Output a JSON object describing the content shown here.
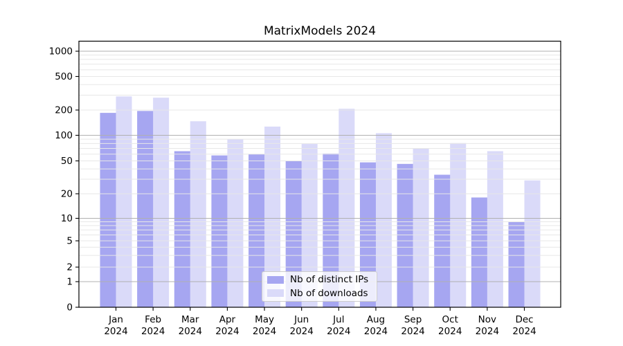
{
  "title": "MatrixModels 2024",
  "legend": {
    "items": [
      {
        "label": "Nb of distinct IPs",
        "color": "#a6a6f1"
      },
      {
        "label": "Nb of downloads",
        "color": "#dadaf9"
      }
    ]
  },
  "colors": {
    "bar_base": "rgb(107,107,232)",
    "grid_major": "#b0b0b0",
    "grid_minor": "#e7e7e7",
    "axis": "#000000",
    "text": "#000000",
    "legend_border": "#cccccc"
  },
  "chart_data": {
    "type": "bar",
    "title": "MatrixModels 2024",
    "categories": [
      "Jan 2024",
      "Feb 2024",
      "Mar 2024",
      "Apr 2024",
      "May 2024",
      "Jun 2024",
      "Jul 2024",
      "Aug 2024",
      "Sep 2024",
      "Oct 2024",
      "Nov 2024",
      "Dec 2024"
    ],
    "series": [
      {
        "name": "Nb of distinct IPs",
        "opacity": 0.6,
        "values": [
          185,
          195,
          65,
          58,
          60,
          50,
          61,
          48,
          46,
          34,
          18,
          9
        ]
      },
      {
        "name": "Nb of downloads",
        "opacity": 0.25,
        "values": [
          290,
          280,
          147,
          90,
          127,
          79,
          207,
          106,
          70,
          81,
          65,
          29
        ]
      }
    ],
    "yscale": "symlog",
    "ylim": [
      0,
      1320
    ],
    "yticks": [
      0,
      1,
      2,
      5,
      10,
      20,
      50,
      100,
      200,
      500,
      1000
    ],
    "xlabel": "",
    "ylabel": "",
    "grid": true,
    "legend_position": "lower-center"
  }
}
